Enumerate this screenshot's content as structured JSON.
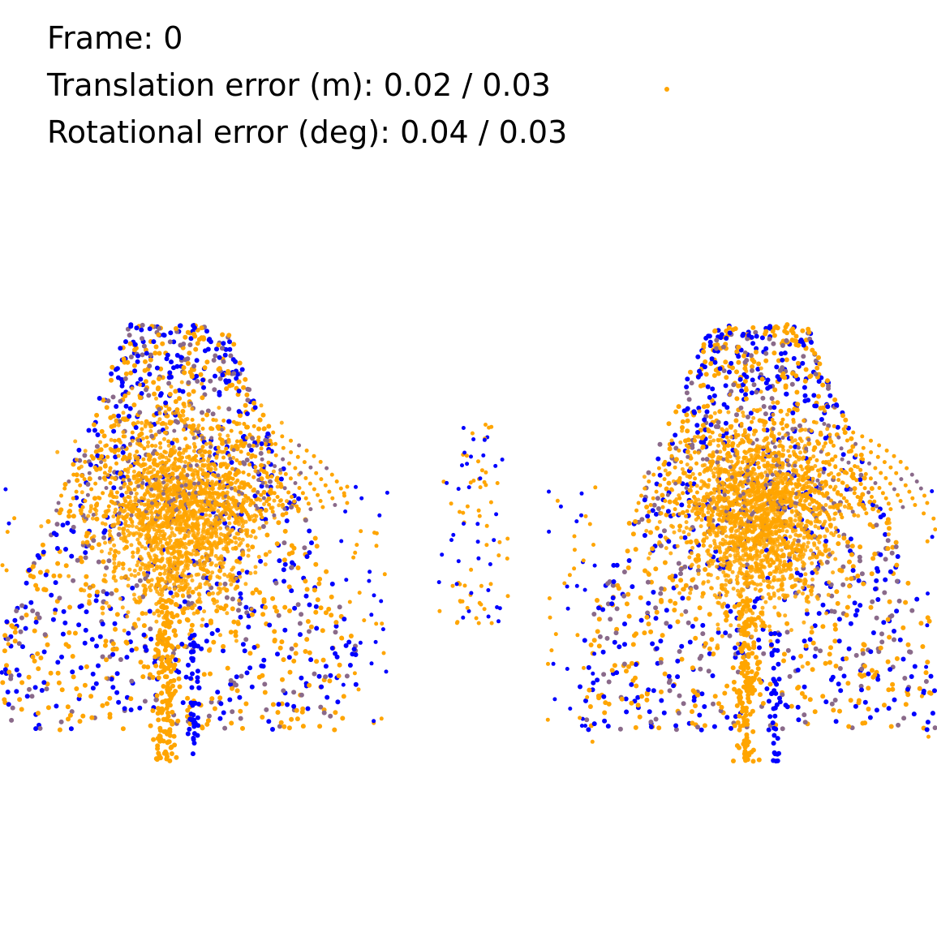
{
  "overlay": {
    "frame_label": "Frame: 0",
    "translation_label": "Translation error (m): 0.02 / 0.03",
    "rotation_label": "Rotational error (deg): 0.04 / 0.03"
  },
  "colors": {
    "background": "#ffffff",
    "text": "#000000",
    "series_blue": "#0000ff",
    "series_orange": "#ffa500",
    "blend": "#8a6a8a"
  },
  "views": [
    {
      "name": "left-view"
    },
    {
      "name": "right-view"
    }
  ]
}
